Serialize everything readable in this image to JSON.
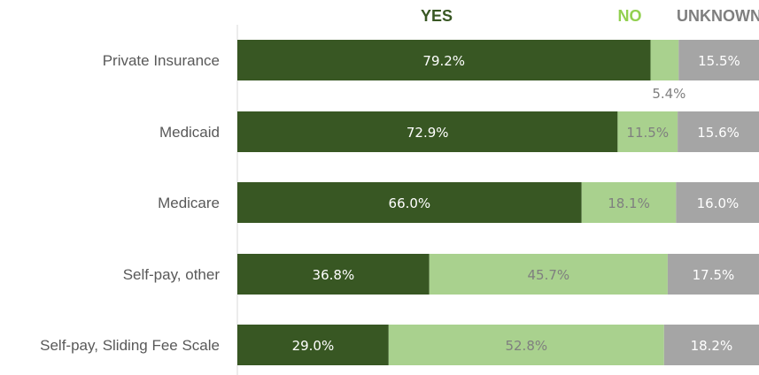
{
  "chart_data": {
    "type": "bar",
    "orientation": "horizontal",
    "stacked": true,
    "categories": [
      "Private Insurance",
      "Medicaid",
      "Medicare",
      "Self-pay, other",
      "Self-pay, Sliding Fee Scale"
    ],
    "series": [
      {
        "name": "YES",
        "color": "#385723",
        "label_color": "#ffffff",
        "values": [
          79.2,
          72.9,
          66.0,
          36.8,
          29.0
        ],
        "labels": [
          "79.2%",
          "72.9%",
          "66.0%",
          "36.8%",
          "29.0%"
        ]
      },
      {
        "name": "NO",
        "color": "#a9d18e",
        "label_color": "#7f7f7f",
        "values": [
          5.4,
          11.5,
          18.1,
          45.7,
          52.8
        ],
        "labels": [
          "5.4%",
          "11.5%",
          "18.1%",
          "45.7%",
          "52.8%"
        ]
      },
      {
        "name": "UNKNOWN",
        "color": "#a5a5a5",
        "label_color": "#ffffff",
        "values": [
          15.5,
          15.6,
          16.0,
          17.5,
          18.2
        ],
        "labels": [
          "15.5%",
          "15.6%",
          "16.0%",
          "17.5%",
          "18.2%"
        ]
      }
    ],
    "xlim": [
      0,
      100
    ],
    "legend": "top",
    "legend_colors": [
      "#385723",
      "#92d050",
      "#7f7f7f"
    ],
    "grid": false
  }
}
